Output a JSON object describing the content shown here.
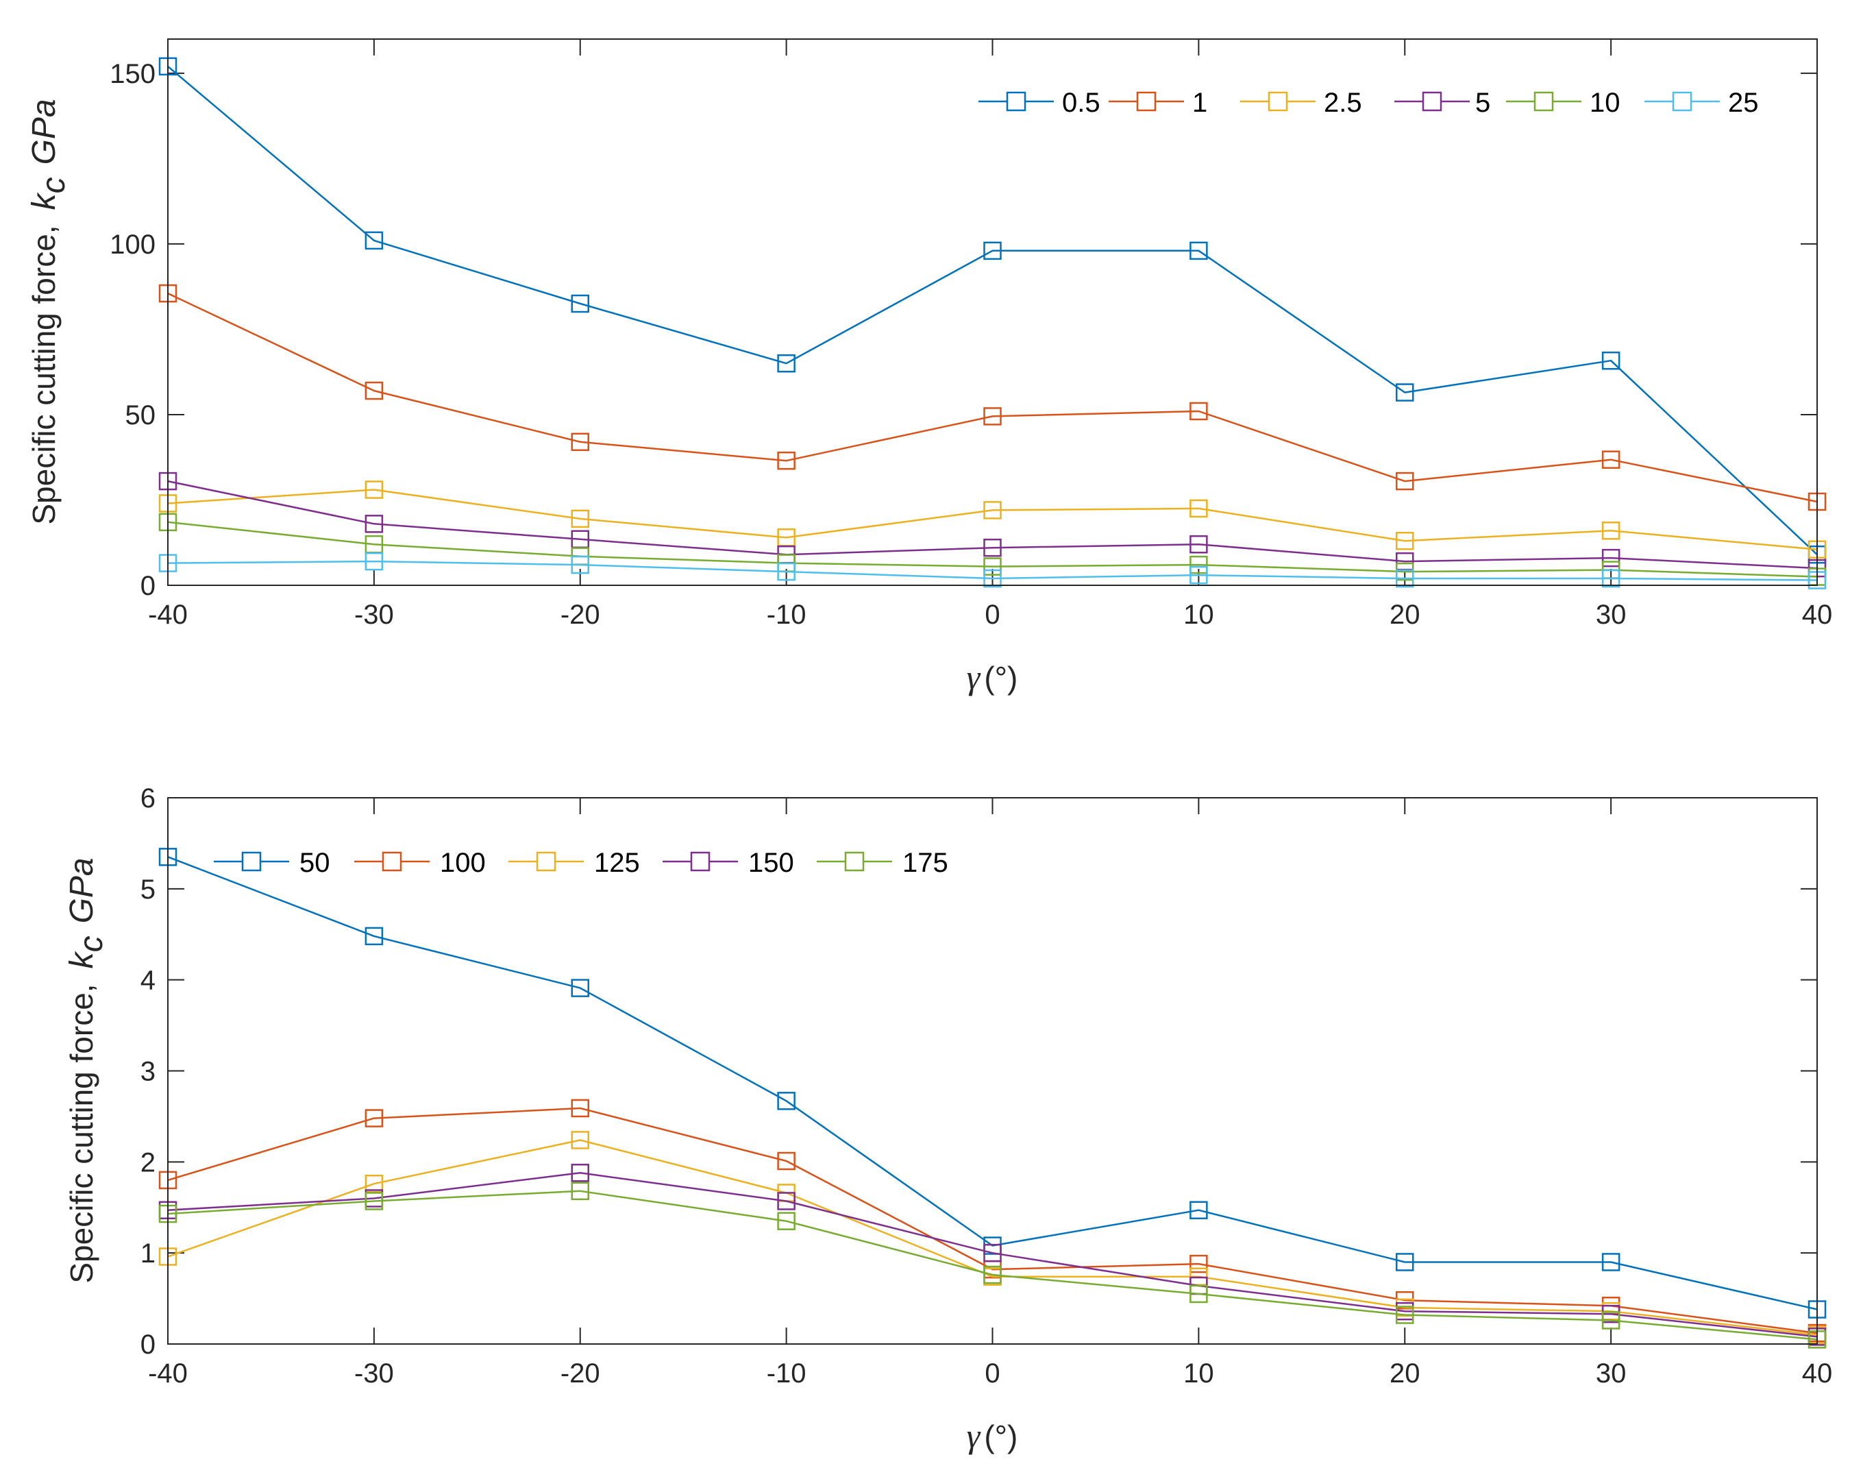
{
  "colors": [
    "#0072BD",
    "#D95319",
    "#EDB120",
    "#7E2F8E",
    "#77AC30",
    "#4DBEEE"
  ],
  "chart_data": [
    {
      "type": "line",
      "marker": "square",
      "xlabel": {
        "symbol": "γ",
        "unit": "(°)"
      },
      "ylabel": {
        "text": "Specific cutting force,",
        "k": "k",
        "c": "c",
        "unit": "GPa"
      },
      "xlim": [
        -40,
        40
      ],
      "ylim": [
        0,
        160
      ],
      "xticks": [
        "-40",
        "-30",
        "-20",
        "-10",
        "0",
        "10",
        "20",
        "30",
        "40"
      ],
      "xtick_values": [
        -40,
        -30,
        -20,
        -10,
        0,
        10,
        20,
        30,
        40
      ],
      "yticks": [
        "0",
        "50",
        "100",
        "150"
      ],
      "ytick_values": [
        0,
        50,
        100,
        150
      ],
      "legend_position": "top-right",
      "x": [
        -40,
        -30,
        -20,
        -10,
        0,
        10,
        20,
        30,
        40
      ],
      "series": [
        {
          "name": "0.5",
          "values": [
            152,
            101,
            82.5,
            65,
            98,
            98,
            56.5,
            65.8,
            9
          ]
        },
        {
          "name": "1",
          "values": [
            85.5,
            57,
            42,
            36.5,
            49.5,
            51,
            30.5,
            36.8,
            24.5
          ]
        },
        {
          "name": "2.5",
          "values": [
            24,
            28,
            19.5,
            14,
            22,
            22.5,
            13,
            16,
            10.5
          ]
        },
        {
          "name": "5",
          "values": [
            30.5,
            18,
            13.5,
            9,
            11,
            12,
            7,
            8,
            5
          ]
        },
        {
          "name": "10",
          "values": [
            18.5,
            12,
            8.5,
            6.5,
            5.5,
            6,
            4,
            4.5,
            2.5
          ]
        },
        {
          "name": "25",
          "values": [
            6.5,
            7,
            6,
            4,
            2,
            3,
            2,
            2,
            1.5
          ]
        }
      ]
    },
    {
      "type": "line",
      "marker": "square",
      "xlabel": {
        "symbol": "γ",
        "unit": "(°)"
      },
      "ylabel": {
        "text": "Specific cutting force,",
        "k": "k",
        "c": "c",
        "unit": "GPa"
      },
      "xlim": [
        -40,
        40
      ],
      "ylim": [
        0,
        6
      ],
      "xticks": [
        "-40",
        "-30",
        "-20",
        "-10",
        "0",
        "10",
        "20",
        "30",
        "40"
      ],
      "xtick_values": [
        -40,
        -30,
        -20,
        -10,
        0,
        10,
        20,
        30,
        40
      ],
      "yticks": [
        "0",
        "1",
        "2",
        "3",
        "4",
        "5",
        "6"
      ],
      "ytick_values": [
        0,
        1,
        2,
        3,
        4,
        5,
        6
      ],
      "legend_position": "top-left",
      "x": [
        -40,
        -30,
        -20,
        -10,
        0,
        10,
        20,
        30,
        40
      ],
      "series": [
        {
          "name": "50",
          "values": [
            5.35,
            4.48,
            3.91,
            2.67,
            1.08,
            1.47,
            0.9,
            0.9,
            0.38
          ]
        },
        {
          "name": "100",
          "values": [
            1.8,
            2.48,
            2.59,
            2.01,
            0.82,
            0.88,
            0.48,
            0.42,
            0.12
          ]
        },
        {
          "name": "125",
          "values": [
            0.96,
            1.76,
            2.24,
            1.66,
            0.74,
            0.74,
            0.4,
            0.36,
            0.1
          ]
        },
        {
          "name": "150",
          "values": [
            1.47,
            1.6,
            1.88,
            1.57,
            1.0,
            0.64,
            0.36,
            0.33,
            0.08
          ]
        },
        {
          "name": "175",
          "values": [
            1.43,
            1.57,
            1.68,
            1.35,
            0.76,
            0.55,
            0.32,
            0.26,
            0.05
          ]
        }
      ]
    }
  ]
}
